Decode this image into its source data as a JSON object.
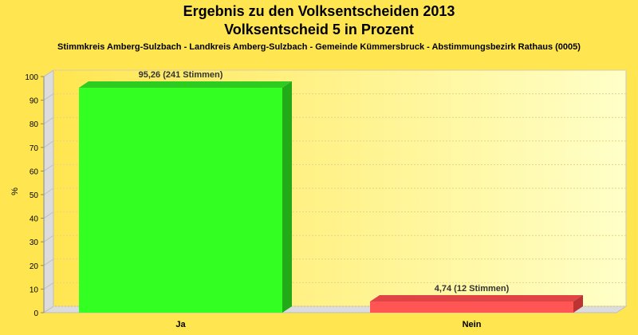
{
  "chart_data": {
    "type": "bar",
    "title": "Ergebnis zu den Volksentscheiden 2013",
    "subtitle_line": "Volksentscheid 5 in Prozent",
    "subtitle": "Stimmkreis Amberg-Sulzbach - Landkreis Amberg-Sulzbach - Gemeinde Kümmersbruck - Abstimmungsbezirk Rathaus (0005)",
    "ylabel": "%",
    "xlabel": "",
    "ylim": [
      0,
      100
    ],
    "yticks": [
      "0",
      "10",
      "20",
      "30",
      "40",
      "50",
      "60",
      "70",
      "80",
      "90",
      "100"
    ],
    "categories": [
      "Ja",
      "Nein"
    ],
    "values": [
      95.26,
      4.74
    ],
    "data_labels": [
      "95,26 (241 Stimmen)",
      "4,74 (12 Stimmen)"
    ],
    "bar_colors": [
      "#33ff22",
      "#ff5555"
    ],
    "bar_top_colors": [
      "#2ecc20",
      "#e04444"
    ],
    "bar_side_colors": [
      "#22aa18",
      "#bb3333"
    ],
    "grid": true,
    "legend": "none"
  },
  "colors": {
    "background": "#ffe650",
    "plot_left": "#ffe650",
    "plot_right": "#ffffcc"
  }
}
